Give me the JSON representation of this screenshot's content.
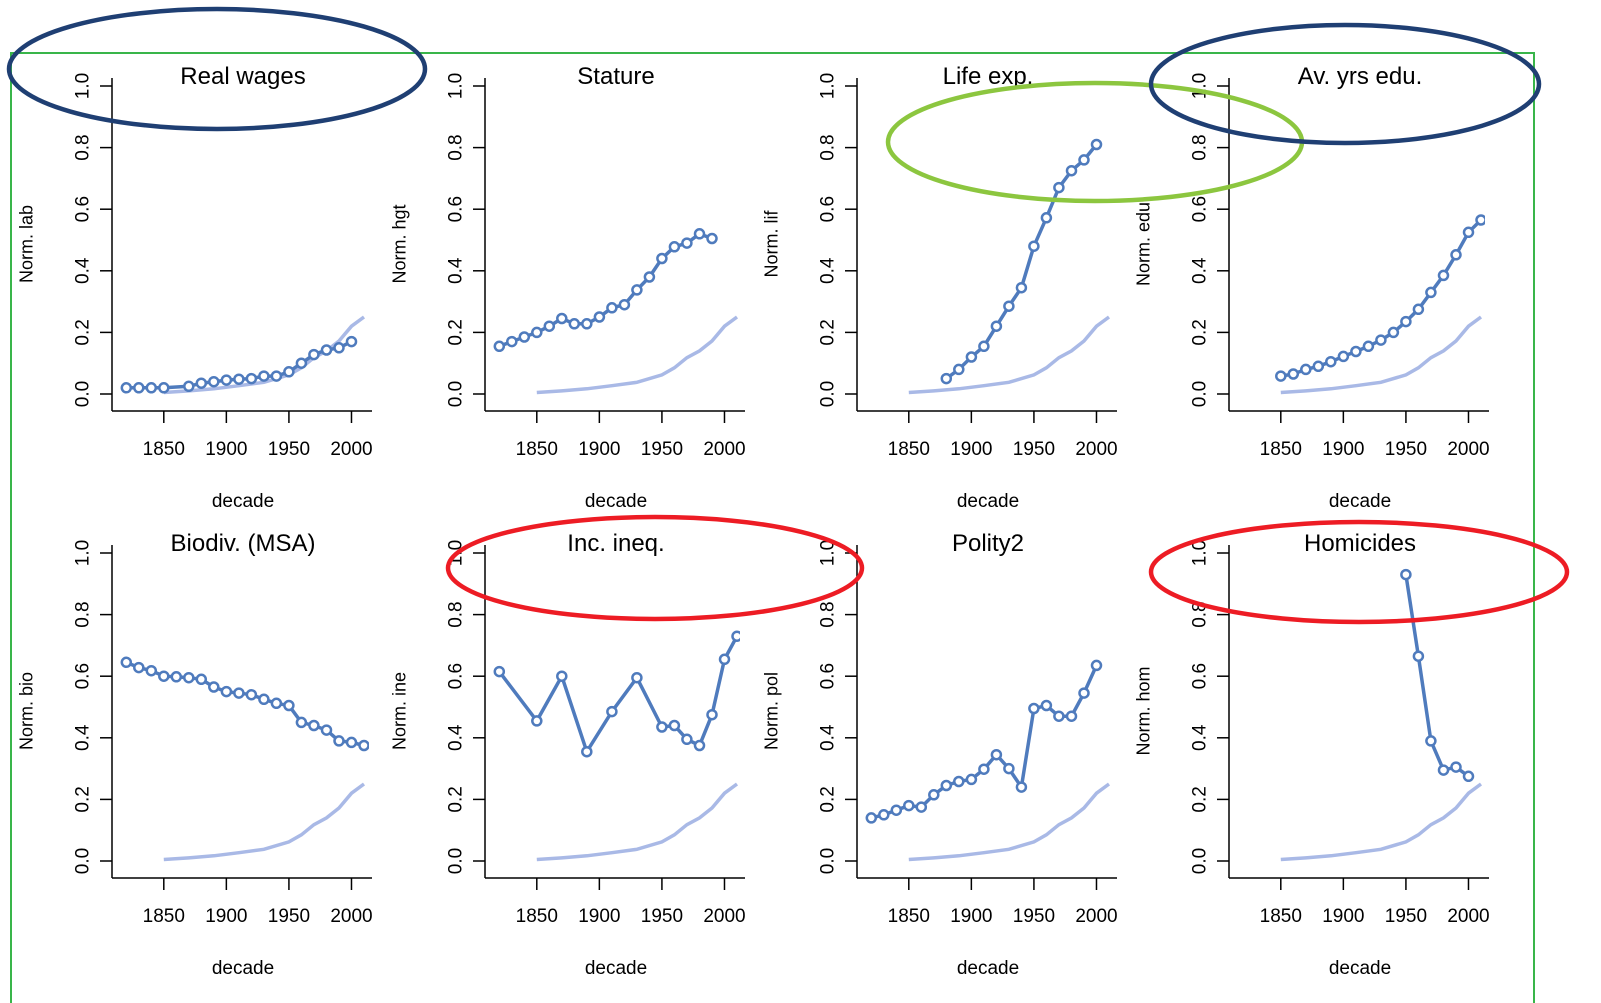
{
  "colors": {
    "series": "#4f7bbd",
    "reference": "#a9b9e6",
    "frame": "#39b54a",
    "highlight_blue": "#1f3f73",
    "highlight_green": "#8cc63f",
    "highlight_red": "#ed1c24"
  },
  "chart_data": [
    {
      "type": "line",
      "title": "Real wages",
      "xlabel": "decade",
      "ylabel": "Norm. lab",
      "xlim": [
        1815,
        2010
      ],
      "ylim": [
        0,
        1
      ],
      "xticks": [
        "1850",
        "1900",
        "1950",
        "2000"
      ],
      "yticks": [
        "0.0",
        "0.2",
        "0.4",
        "0.6",
        "0.8",
        "1.0"
      ],
      "x": [
        1820,
        1830,
        1840,
        1850,
        1870,
        1880,
        1890,
        1900,
        1910,
        1920,
        1930,
        1940,
        1950,
        1960,
        1970,
        1980,
        1990,
        2000
      ],
      "values": [
        0.02,
        0.02,
        0.02,
        0.02,
        0.025,
        0.035,
        0.04,
        0.045,
        0.048,
        0.05,
        0.058,
        0.058,
        0.072,
        0.1,
        0.128,
        0.143,
        0.15,
        0.17
      ],
      "reference": [
        [
          1850,
          0.005
        ],
        [
          1870,
          0.01
        ],
        [
          1890,
          0.017
        ],
        [
          1910,
          0.027
        ],
        [
          1930,
          0.038
        ],
        [
          1950,
          0.062
        ],
        [
          1960,
          0.085
        ],
        [
          1970,
          0.118
        ],
        [
          1980,
          0.14
        ],
        [
          1990,
          0.172
        ],
        [
          2000,
          0.22
        ],
        [
          2010,
          0.25
        ]
      ],
      "highlight": "blue"
    },
    {
      "type": "line",
      "title": "Stature",
      "xlabel": "decade",
      "ylabel": "Norm. hgt",
      "xlim": [
        1815,
        2010
      ],
      "ylim": [
        0,
        1
      ],
      "xticks": [
        "1850",
        "1900",
        "1950",
        "2000"
      ],
      "yticks": [
        "0.0",
        "0.2",
        "0.4",
        "0.6",
        "0.8",
        "1.0"
      ],
      "x": [
        1820,
        1830,
        1840,
        1850,
        1860,
        1870,
        1880,
        1890,
        1900,
        1910,
        1920,
        1930,
        1940,
        1950,
        1960,
        1970,
        1980,
        1990
      ],
      "values": [
        0.155,
        0.17,
        0.185,
        0.2,
        0.22,
        0.245,
        0.228,
        0.228,
        0.25,
        0.28,
        0.29,
        0.338,
        0.38,
        0.44,
        0.478,
        0.49,
        0.52,
        0.505
      ],
      "reference": [
        [
          1850,
          0.005
        ],
        [
          1870,
          0.01
        ],
        [
          1890,
          0.017
        ],
        [
          1910,
          0.027
        ],
        [
          1930,
          0.038
        ],
        [
          1950,
          0.062
        ],
        [
          1960,
          0.085
        ],
        [
          1970,
          0.118
        ],
        [
          1980,
          0.14
        ],
        [
          1990,
          0.172
        ],
        [
          2000,
          0.22
        ],
        [
          2010,
          0.25
        ]
      ]
    },
    {
      "type": "line",
      "title": "Life exp.",
      "xlabel": "decade",
      "ylabel": "Norm. lif",
      "xlim": [
        1815,
        2010
      ],
      "ylim": [
        0,
        1
      ],
      "xticks": [
        "1850",
        "1900",
        "1950",
        "2000"
      ],
      "yticks": [
        "0.0",
        "0.2",
        "0.4",
        "0.6",
        "0.8",
        "1.0"
      ],
      "x": [
        1880,
        1890,
        1900,
        1910,
        1920,
        1930,
        1940,
        1950,
        1960,
        1970,
        1980,
        1990,
        2000
      ],
      "values": [
        0.05,
        0.08,
        0.12,
        0.155,
        0.22,
        0.285,
        0.345,
        0.48,
        0.572,
        0.67,
        0.725,
        0.76,
        0.81
      ],
      "reference": [
        [
          1850,
          0.005
        ],
        [
          1870,
          0.01
        ],
        [
          1890,
          0.017
        ],
        [
          1910,
          0.027
        ],
        [
          1930,
          0.038
        ],
        [
          1950,
          0.062
        ],
        [
          1960,
          0.085
        ],
        [
          1970,
          0.118
        ],
        [
          1980,
          0.14
        ],
        [
          1990,
          0.172
        ],
        [
          2000,
          0.22
        ],
        [
          2010,
          0.25
        ]
      ],
      "highlight": "green"
    },
    {
      "type": "line",
      "title": "Av. yrs edu.",
      "xlabel": "decade",
      "ylabel": "Norm. edu",
      "xlim": [
        1815,
        2010
      ],
      "ylim": [
        0,
        1
      ],
      "xticks": [
        "1850",
        "1900",
        "1950",
        "2000"
      ],
      "yticks": [
        "0.0",
        "0.2",
        "0.4",
        "0.6",
        "0.8",
        "1.0"
      ],
      "x": [
        1850,
        1860,
        1870,
        1880,
        1890,
        1900,
        1910,
        1920,
        1930,
        1940,
        1950,
        1960,
        1970,
        1980,
        1990,
        2000,
        2010
      ],
      "values": [
        0.058,
        0.065,
        0.08,
        0.09,
        0.105,
        0.122,
        0.138,
        0.155,
        0.175,
        0.2,
        0.235,
        0.275,
        0.33,
        0.385,
        0.452,
        0.525,
        0.565
      ],
      "reference": [
        [
          1850,
          0.005
        ],
        [
          1870,
          0.01
        ],
        [
          1890,
          0.017
        ],
        [
          1910,
          0.027
        ],
        [
          1930,
          0.038
        ],
        [
          1950,
          0.062
        ],
        [
          1960,
          0.085
        ],
        [
          1970,
          0.118
        ],
        [
          1980,
          0.14
        ],
        [
          1990,
          0.172
        ],
        [
          2000,
          0.22
        ],
        [
          2010,
          0.25
        ]
      ],
      "highlight": "blue"
    },
    {
      "type": "line",
      "title": "Biodiv. (MSA)",
      "xlabel": "decade",
      "ylabel": "Norm. bio",
      "xlim": [
        1815,
        2010
      ],
      "ylim": [
        0,
        1
      ],
      "xticks": [
        "1850",
        "1900",
        "1950",
        "2000"
      ],
      "yticks": [
        "0.0",
        "0.2",
        "0.4",
        "0.6",
        "0.8",
        "1.0"
      ],
      "x": [
        1820,
        1830,
        1840,
        1850,
        1860,
        1870,
        1880,
        1890,
        1900,
        1910,
        1920,
        1930,
        1940,
        1950,
        1960,
        1970,
        1980,
        1990,
        2000,
        2010
      ],
      "values": [
        0.645,
        0.628,
        0.618,
        0.6,
        0.598,
        0.595,
        0.59,
        0.565,
        0.55,
        0.545,
        0.54,
        0.525,
        0.512,
        0.505,
        0.45,
        0.44,
        0.425,
        0.39,
        0.385,
        0.375
      ],
      "reference": [
        [
          1850,
          0.005
        ],
        [
          1870,
          0.01
        ],
        [
          1890,
          0.017
        ],
        [
          1910,
          0.027
        ],
        [
          1930,
          0.038
        ],
        [
          1950,
          0.062
        ],
        [
          1960,
          0.085
        ],
        [
          1970,
          0.118
        ],
        [
          1980,
          0.14
        ],
        [
          1990,
          0.172
        ],
        [
          2000,
          0.22
        ],
        [
          2010,
          0.25
        ]
      ]
    },
    {
      "type": "line",
      "title": "Inc. ineq.",
      "xlabel": "decade",
      "ylabel": "Norm. ine",
      "xlim": [
        1815,
        2010
      ],
      "ylim": [
        0,
        1
      ],
      "xticks": [
        "1850",
        "1900",
        "1950",
        "2000"
      ],
      "yticks": [
        "0.0",
        "0.2",
        "0.4",
        "0.6",
        "0.8",
        "1.0"
      ],
      "x": [
        1820,
        1850,
        1870,
        1890,
        1910,
        1930,
        1950,
        1960,
        1970,
        1980,
        1990,
        2000,
        2010
      ],
      "values": [
        0.615,
        0.455,
        0.6,
        0.355,
        0.485,
        0.595,
        0.435,
        0.44,
        0.395,
        0.375,
        0.475,
        0.655,
        0.73
      ],
      "reference": [
        [
          1850,
          0.005
        ],
        [
          1870,
          0.01
        ],
        [
          1890,
          0.017
        ],
        [
          1910,
          0.027
        ],
        [
          1930,
          0.038
        ],
        [
          1950,
          0.062
        ],
        [
          1960,
          0.085
        ],
        [
          1970,
          0.118
        ],
        [
          1980,
          0.14
        ],
        [
          1990,
          0.172
        ],
        [
          2000,
          0.22
        ],
        [
          2010,
          0.25
        ]
      ],
      "highlight": "red"
    },
    {
      "type": "line",
      "title": "Polity2",
      "xlabel": "decade",
      "ylabel": "Norm. pol",
      "xlim": [
        1815,
        2010
      ],
      "ylim": [
        0,
        1
      ],
      "xticks": [
        "1850",
        "1900",
        "1950",
        "2000"
      ],
      "yticks": [
        "0.0",
        "0.2",
        "0.4",
        "0.6",
        "0.8",
        "1.0"
      ],
      "x": [
        1820,
        1830,
        1840,
        1850,
        1860,
        1870,
        1880,
        1890,
        1900,
        1910,
        1920,
        1930,
        1940,
        1950,
        1960,
        1970,
        1980,
        1990,
        2000
      ],
      "values": [
        0.14,
        0.15,
        0.165,
        0.18,
        0.175,
        0.215,
        0.245,
        0.258,
        0.265,
        0.298,
        0.345,
        0.3,
        0.24,
        0.495,
        0.505,
        0.47,
        0.47,
        0.545,
        0.635
      ],
      "reference": [
        [
          1850,
          0.005
        ],
        [
          1870,
          0.01
        ],
        [
          1890,
          0.017
        ],
        [
          1910,
          0.027
        ],
        [
          1930,
          0.038
        ],
        [
          1950,
          0.062
        ],
        [
          1960,
          0.085
        ],
        [
          1970,
          0.118
        ],
        [
          1980,
          0.14
        ],
        [
          1990,
          0.172
        ],
        [
          2000,
          0.22
        ],
        [
          2010,
          0.25
        ]
      ]
    },
    {
      "type": "line",
      "title": "Homicides",
      "xlabel": "decade",
      "ylabel": "Norm. hom",
      "xlim": [
        1815,
        2010
      ],
      "ylim": [
        0,
        1
      ],
      "xticks": [
        "1850",
        "1900",
        "1950",
        "2000"
      ],
      "yticks": [
        "0.0",
        "0.2",
        "0.4",
        "0.6",
        "0.8",
        "1.0"
      ],
      "x": [
        1950,
        1960,
        1970,
        1980,
        1990,
        2000
      ],
      "values": [
        0.93,
        0.665,
        0.39,
        0.295,
        0.305,
        0.275
      ],
      "reference": [
        [
          1850,
          0.005
        ],
        [
          1870,
          0.01
        ],
        [
          1890,
          0.017
        ],
        [
          1910,
          0.027
        ],
        [
          1930,
          0.038
        ],
        [
          1950,
          0.062
        ],
        [
          1960,
          0.085
        ],
        [
          1970,
          0.118
        ],
        [
          1980,
          0.14
        ],
        [
          1990,
          0.172
        ],
        [
          2000,
          0.22
        ],
        [
          2010,
          0.25
        ]
      ],
      "highlight": "red"
    }
  ]
}
